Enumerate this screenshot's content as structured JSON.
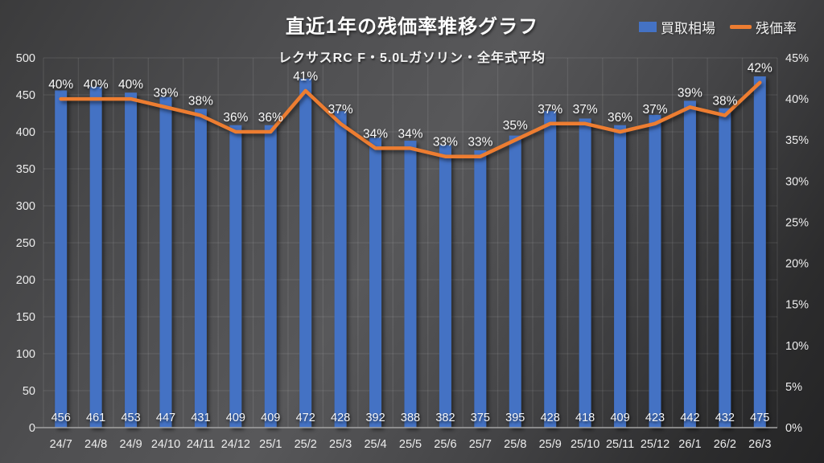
{
  "title": "直近1年の残価率推移グラフ",
  "subtitle": "レクサスRC F・5.0Lガソリン・全年式平均",
  "legend": {
    "items": [
      {
        "label": "買取相場",
        "swatch": "square",
        "color": "#4472c4"
      },
      {
        "label": "残価率",
        "swatch": "line",
        "color": "#ed7d31"
      }
    ]
  },
  "colors": {
    "bar": "#4472c4",
    "line": "#ed7d31",
    "grid": "rgba(255,255,255,0.09)",
    "axis_line": "#a3a3a3",
    "text": "#ededed"
  },
  "chart_data": {
    "type": "bar",
    "subtype": "bar-line-combo",
    "title": "直近1年の残価率推移グラフ",
    "subtitle": "レクサスRC F・5.0Lガソリン・全年式平均",
    "categories": [
      "24/7",
      "24/8",
      "24/9",
      "24/10",
      "24/11",
      "24/12",
      "25/1",
      "25/2",
      "25/3",
      "25/4",
      "25/5",
      "25/6",
      "25/7",
      "25/8",
      "25/9",
      "25/10",
      "25/11",
      "25/12",
      "26/1",
      "26/2",
      "26/3"
    ],
    "series": [
      {
        "name": "買取相場",
        "type": "bar",
        "axis": "left",
        "values": [
          456,
          461,
          453,
          447,
          431,
          409,
          409,
          472,
          428,
          392,
          388,
          382,
          375,
          395,
          428,
          418,
          409,
          423,
          442,
          432,
          475
        ],
        "labels": [
          "456",
          "461",
          "453",
          "447",
          "431",
          "409",
          "409",
          "472",
          "428",
          "392",
          "388",
          "382",
          "375",
          "395",
          "428",
          "418",
          "409",
          "423",
          "442",
          "432",
          "475"
        ]
      },
      {
        "name": "残価率",
        "type": "line",
        "axis": "right",
        "values": [
          40,
          40,
          40,
          39,
          38,
          36,
          36,
          41,
          37,
          34,
          34,
          33,
          33,
          35,
          37,
          37,
          36,
          37,
          39,
          38,
          42
        ],
        "labels": [
          "40%",
          "40%",
          "40%",
          "39%",
          "38%",
          "36%",
          "36%",
          "41%",
          "37%",
          "34%",
          "34%",
          "33%",
          "33%",
          "35%",
          "37%",
          "37%",
          "36%",
          "37%",
          "39%",
          "38%",
          "42%"
        ]
      }
    ],
    "left_axis": {
      "min": 0,
      "max": 500,
      "ticks": [
        0,
        50,
        100,
        150,
        200,
        250,
        300,
        350,
        400,
        450,
        500
      ],
      "tick_labels": [
        "0",
        "50",
        "100",
        "150",
        "200",
        "250",
        "300",
        "350",
        "400",
        "450",
        "500"
      ]
    },
    "right_axis": {
      "min": 0,
      "max": 45,
      "ticks": [
        0,
        5,
        10,
        15,
        20,
        25,
        30,
        35,
        40,
        45
      ],
      "tick_labels": [
        "0%",
        "5%",
        "10%",
        "15%",
        "20%",
        "25%",
        "30%",
        "35%",
        "40%",
        "45%"
      ]
    },
    "grid": true,
    "legend_position": "top-right"
  }
}
